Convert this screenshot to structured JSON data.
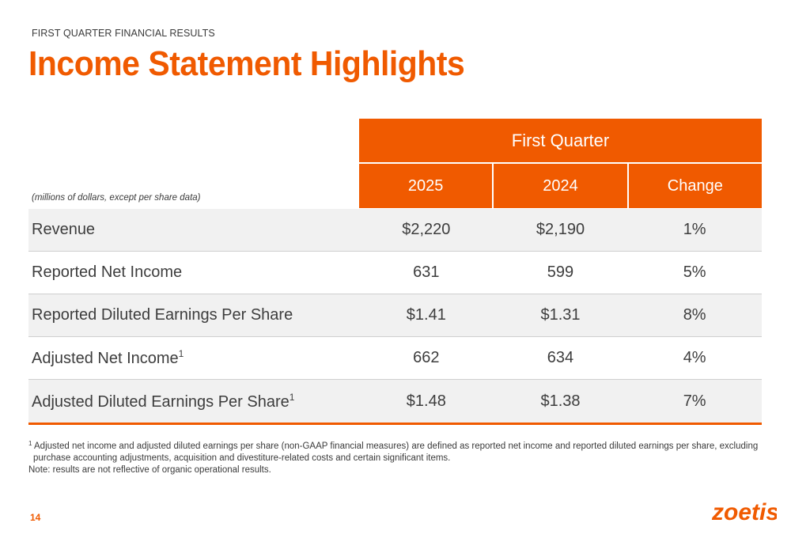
{
  "header": {
    "eyebrow": "FIRST QUARTER FINANCIAL RESULTS",
    "title": "Income Statement Highlights"
  },
  "table": {
    "units_note": "(millions of dollars, except per share data)",
    "group_header": "First Quarter",
    "columns": [
      "2025",
      "2024",
      "Change"
    ],
    "rows": [
      {
        "label": "Revenue",
        "sup": "",
        "v2025": "$2,220",
        "v2024": "$2,190",
        "change": "1%"
      },
      {
        "label": "Reported Net Income",
        "sup": "",
        "v2025": "631",
        "v2024": "599",
        "change": "5%"
      },
      {
        "label": "Reported Diluted Earnings Per Share",
        "sup": "",
        "v2025": "$1.41",
        "v2024": "$1.31",
        "change": "8%"
      },
      {
        "label": "Adjusted Net Income",
        "sup": "1",
        "v2025": "662",
        "v2024": "634",
        "change": "4%"
      },
      {
        "label": "Adjusted Diluted Earnings Per Share",
        "sup": "1",
        "v2025": "$1.48",
        "v2024": "$1.38",
        "change": "7%"
      }
    ]
  },
  "footnotes": {
    "marker": "1",
    "line1": "Adjusted net income and adjusted diluted earnings per share (non-GAAP financial measures) are defined as reported net income and reported diluted earnings per share, excluding",
    "line2": "purchase accounting adjustments, acquisition and divestiture-related costs and certain significant items.",
    "note": "Note: results are not reflective of organic operational results."
  },
  "footer": {
    "page_number": "14",
    "logo_text": "zoetis"
  },
  "colors": {
    "brand_orange": "#f05a00",
    "row_shade": "#f1f1f1",
    "text": "#3d3d3d"
  }
}
